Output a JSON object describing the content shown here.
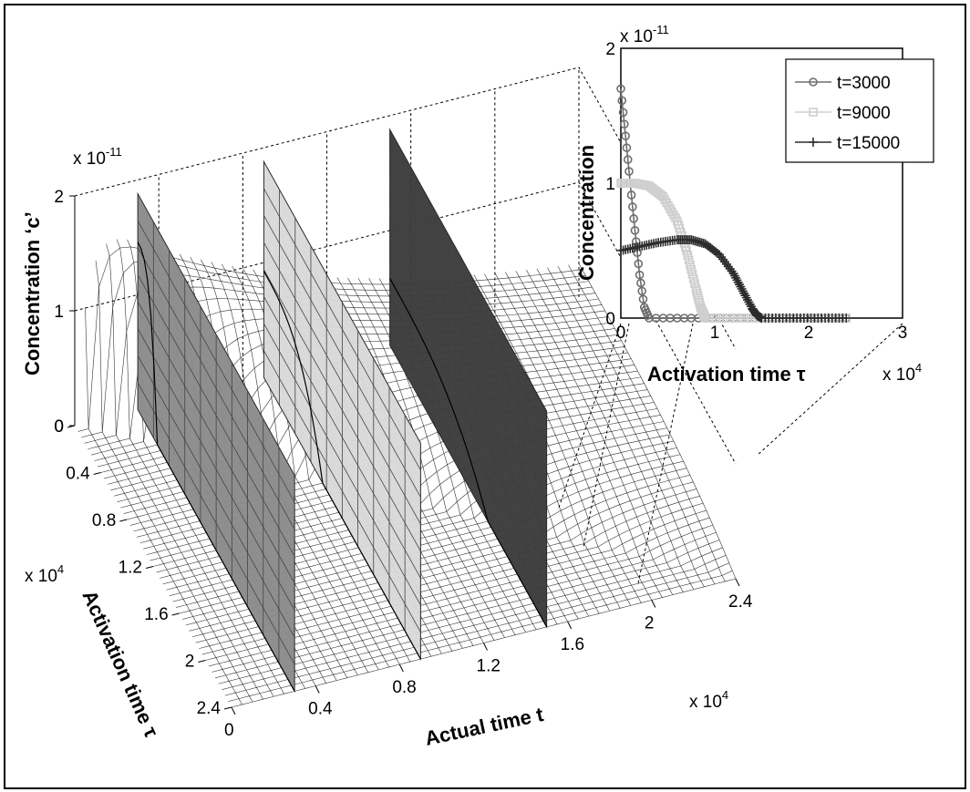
{
  "chart_data": [
    {
      "type": "surface",
      "xlabel": "Actual time t",
      "ylabel": "Activation time τ",
      "zlabel": "Concentration ‘c’",
      "x_ticks": [
        "0",
        "0.4",
        "0.8",
        "1.2",
        "1.6",
        "2",
        "2.4"
      ],
      "x_exponent": "x 10",
      "x_exponent_power": "4",
      "y_ticks": [
        "0",
        "0.4",
        "0.8",
        "1.2",
        "1.6",
        "2",
        "2.4"
      ],
      "y_exponent": "x 10",
      "y_exponent_power": "4",
      "z_ticks": [
        "0",
        "1",
        "2"
      ],
      "z_exponent": "x 10",
      "z_exponent_power": "-11",
      "xlim": [
        0,
        24000
      ],
      "ylim": [
        0,
        24000
      ],
      "zlim": [
        0,
        2e-11
      ],
      "slices": [
        {
          "t": 3000,
          "color": "#8c8c8c"
        },
        {
          "t": 9000,
          "color": "#d9d9d9"
        },
        {
          "t": 15000,
          "color": "#3c3c3c"
        }
      ],
      "peak": {
        "t": 1800,
        "tau": 300,
        "c": 1.85e-11
      }
    },
    {
      "type": "line",
      "xlabel": "Activation time τ",
      "ylabel": "Concentration",
      "x_ticks": [
        "0",
        "1",
        "2",
        "3"
      ],
      "x_exponent": "x 10",
      "x_exponent_power": "4",
      "y_ticks": [
        "0",
        "1",
        "2"
      ],
      "y_exponent": "x 10",
      "y_exponent_power": "-11",
      "xlim": [
        0,
        30000
      ],
      "ylim": [
        0,
        2e-11
      ],
      "legend_position": "top-right",
      "series": [
        {
          "name": "t=3000",
          "marker": "circle",
          "color": "#6e6e6e",
          "x": [
            0,
            500,
            1000,
            1500,
            2000,
            2500,
            3000,
            6000,
            9000,
            12000,
            15000,
            18000,
            21000,
            24000
          ],
          "y": [
            1.7e-11,
            1.35e-11,
            1e-11,
            6.5e-12,
            3.2e-12,
            8e-13,
            0,
            0,
            0,
            0,
            0,
            0,
            0,
            0
          ]
        },
        {
          "name": "t=9000",
          "marker": "square",
          "color": "#cfcfcf",
          "x": [
            0,
            1500,
            3000,
            4500,
            6000,
            7000,
            8000,
            8500,
            9000,
            12000,
            15000,
            18000,
            21000,
            24000
          ],
          "y": [
            1e-11,
            1e-11,
            9.8e-12,
            9e-12,
            7.2e-12,
            5e-12,
            2.2e-12,
            8e-13,
            0,
            0,
            0,
            0,
            0,
            0
          ]
        },
        {
          "name": "t=15000",
          "marker": "plus",
          "color": "#2c2c2c",
          "x": [
            0,
            2000,
            4000,
            6000,
            7500,
            9000,
            10500,
            12000,
            13000,
            14000,
            14500,
            15000,
            18000,
            21000,
            24000
          ],
          "y": [
            5e-12,
            5.3e-12,
            5.6e-12,
            5.8e-12,
            5.8e-12,
            5.5e-12,
            4.7e-12,
            3.3e-12,
            2e-12,
            7e-13,
            2e-13,
            0,
            0,
            0,
            0
          ]
        }
      ]
    }
  ]
}
